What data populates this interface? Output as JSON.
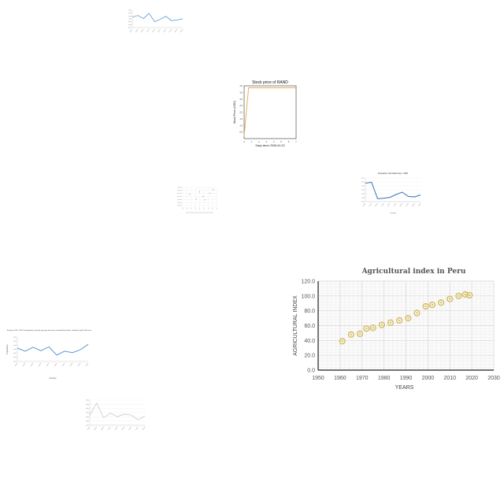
{
  "chart_data": [
    {
      "id": "agri",
      "type": "scatter",
      "title": "Agricultural index in Peru",
      "xlabel": "YEARS",
      "ylabel": "AGRICULTURAL INDEX",
      "xlim": [
        1950,
        2030
      ],
      "ylim": [
        0,
        120
      ],
      "xticks": [
        "1950",
        "1960",
        "1970",
        "1980",
        "1990",
        "2000",
        "2010",
        "2020",
        "2030"
      ],
      "yticks": [
        "0.0",
        "20.0",
        "40.0",
        "60.0",
        "80.0",
        "100.0",
        "120.0"
      ],
      "grid": true,
      "marker_color": "#d8c06a",
      "series": [
        {
          "x": [
            1961,
            1965,
            1969,
            1972,
            1975,
            1979,
            1983,
            1987,
            1991,
            1995,
            1999,
            2002,
            2006,
            2010,
            2014,
            2017,
            2019
          ],
          "y": [
            39,
            48,
            49,
            56,
            57,
            61,
            64,
            67,
            70,
            77,
            86,
            88,
            91,
            96,
            100,
            102,
            101
          ]
        }
      ]
    },
    {
      "id": "rand",
      "type": "line",
      "title": "Stock price of RAND",
      "xlabel": "Days since 2006-04-20",
      "ylabel": "Stock Price (USD)",
      "xlim": [
        0,
        7
      ],
      "ylim": [
        0,
        4
      ],
      "xticks": [
        "0",
        "1",
        "2",
        "3",
        "4",
        "5",
        "6",
        "7"
      ],
      "yticks": [
        "0.5",
        "1.0",
        "1.5",
        "2.0",
        "2.5",
        "3.0",
        "3.5",
        "4.0"
      ],
      "color": "#e0b15a",
      "series": [
        {
          "x": [
            0,
            0.6,
            7
          ],
          "y": [
            0.2,
            3.85,
            3.85
          ]
        }
      ]
    },
    {
      "id": "top",
      "type": "line",
      "title": "",
      "color": "#4a8bc9",
      "series": [
        {
          "values": [
            60,
            70,
            52,
            82,
            34,
            48,
            65,
            40,
            44,
            50
          ]
        }
      ]
    },
    {
      "id": "maternity",
      "type": "line",
      "title": "Population with Maternity in 1960",
      "xlabel": "Country",
      "ylabel": "",
      "color": "#3a6fb7",
      "series": [
        {
          "values": [
            78,
            82,
            12,
            14,
            18,
            30,
            40,
            22,
            20,
            28
          ]
        }
      ]
    },
    {
      "id": "botswana",
      "type": "line",
      "title": "Botswana, 1960 - 2020, Total population, by broad age group, both sexes combined (thousands) - Population aged 15-64 for the year 2020",
      "xlabel": "Country",
      "ylabel": "Population",
      "color": "#4a8bc9",
      "series": [
        {
          "values": [
            55,
            42,
            58,
            44,
            60,
            26,
            42,
            36,
            48,
            70
          ]
        }
      ]
    },
    {
      "id": "bottom",
      "type": "line",
      "title": "",
      "color": "#b9c3cf",
      "series": [
        {
          "values": [
            40,
            88,
            30,
            48,
            34,
            44,
            40,
            22,
            36
          ]
        }
      ]
    },
    {
      "id": "scatter",
      "type": "scatter",
      "title": "",
      "color": "#9aa4b0",
      "series": [
        {
          "x": [
            1,
            2,
            2.5,
            3,
            3.3,
            4,
            4.5
          ],
          "y": [
            5,
            3,
            6,
            4,
            2.5,
            5.5,
            7
          ]
        }
      ]
    }
  ]
}
